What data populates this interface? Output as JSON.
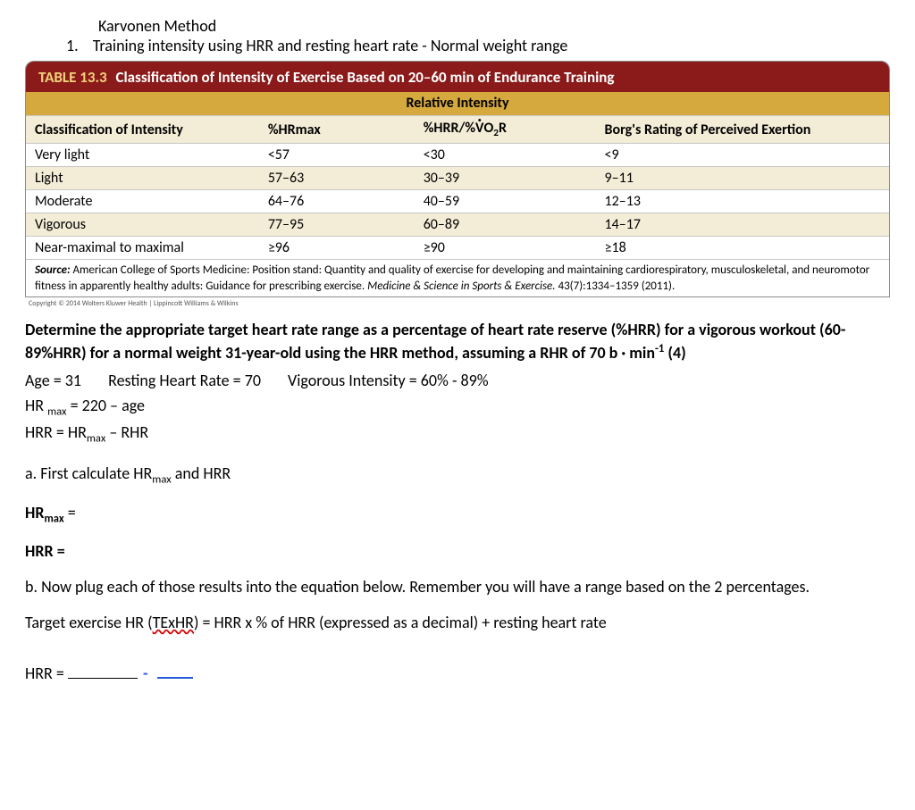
{
  "header": {
    "method_title": "Karvonen Method",
    "list_number": "1.",
    "list_text": "Training intensity using HRR and resting heart rate - Normal weight range"
  },
  "table": {
    "title_prefix": "TABLE 13.3",
    "title_text": "Classification of Intensity of Exercise Based on 20–60 min of Endurance Training",
    "subtitle": "Relative Intensity",
    "header_bg": "#8b1a1a",
    "subtitle_bg": "#d6a93e",
    "row_alt_bg": "#f3ecd6",
    "row_bg": "#ffffff",
    "columns": [
      "Classification of Intensity",
      "%HRmax",
      "%HRR/%V̇O₂R",
      "Borg's Rating of Perceived Exertion"
    ],
    "col_widths": [
      "27%",
      "18%",
      "21%",
      "34%"
    ],
    "rows": [
      [
        "Very light",
        "<57",
        "<30",
        "<9"
      ],
      [
        "Light",
        "57–63",
        "30–39",
        "9–11"
      ],
      [
        "Moderate",
        "64–76",
        "40–59",
        "12–13"
      ],
      [
        "Vigorous",
        "77–95",
        "60–89",
        "14–17"
      ],
      [
        "Near-maximal to maximal",
        "≥96",
        "≥90",
        "≥18"
      ]
    ],
    "source_label": "Source:",
    "source_text_1": " American College of Sports Medicine: Position stand: Quantity and quality of exercise for developing and maintaining cardiorespiratory, musculoskeletal, and neuromotor fitness in apparently healthy adults: Guidance for prescribing exercise. ",
    "source_italic": "Medicine & Science in Sports & Exercise.",
    "source_text_2": " 43(7):1334–1359 (2011).",
    "copyright": "Copyright © 2014 Wolters Kluwer Health | Lippincott Williams & Wilkins"
  },
  "question": {
    "main_1": "Determine the appropriate target heart rate range as a percentage of heart rate reserve (%HRR) for a vigorous workout (60-89%HRR) for a normal weight 31-year-old using the HRR method, assuming a RHR of 70 b · min",
    "main_sup": "-1",
    "main_2": " (4)"
  },
  "given": {
    "age_label": "Age = 31",
    "rhr_label": "Resting Heart Rate = 70",
    "intensity_label": "Vigorous Intensity = 60% - 89%",
    "hrmax_eq_prefix": "HR ",
    "hrmax_eq_sub": "max",
    "hrmax_eq_suffix": " = 220 – age",
    "hrr_eq_prefix": "HRR = HR",
    "hrr_eq_sub": "max",
    "hrr_eq_suffix": " – RHR"
  },
  "parts": {
    "a_prefix": "a. First calculate HR",
    "a_sub": "max",
    "a_suffix": " and HRR",
    "hrmax_prompt_prefix": "HR",
    "hrmax_prompt_sub": "max",
    "hrmax_prompt_suffix": " =",
    "hrr_prompt": "HRR =",
    "b_text": "b. Now plug each of those results into the equation below.  Remember you will have a range based on the 2 percentages.",
    "target_eq_1": "Target exercise HR (",
    "target_eq_wavy": "TExHR",
    "target_eq_2": ") = HRR x % of HRR (expressed as a decimal) + resting heart rate",
    "final_hrr": "HRR ="
  }
}
